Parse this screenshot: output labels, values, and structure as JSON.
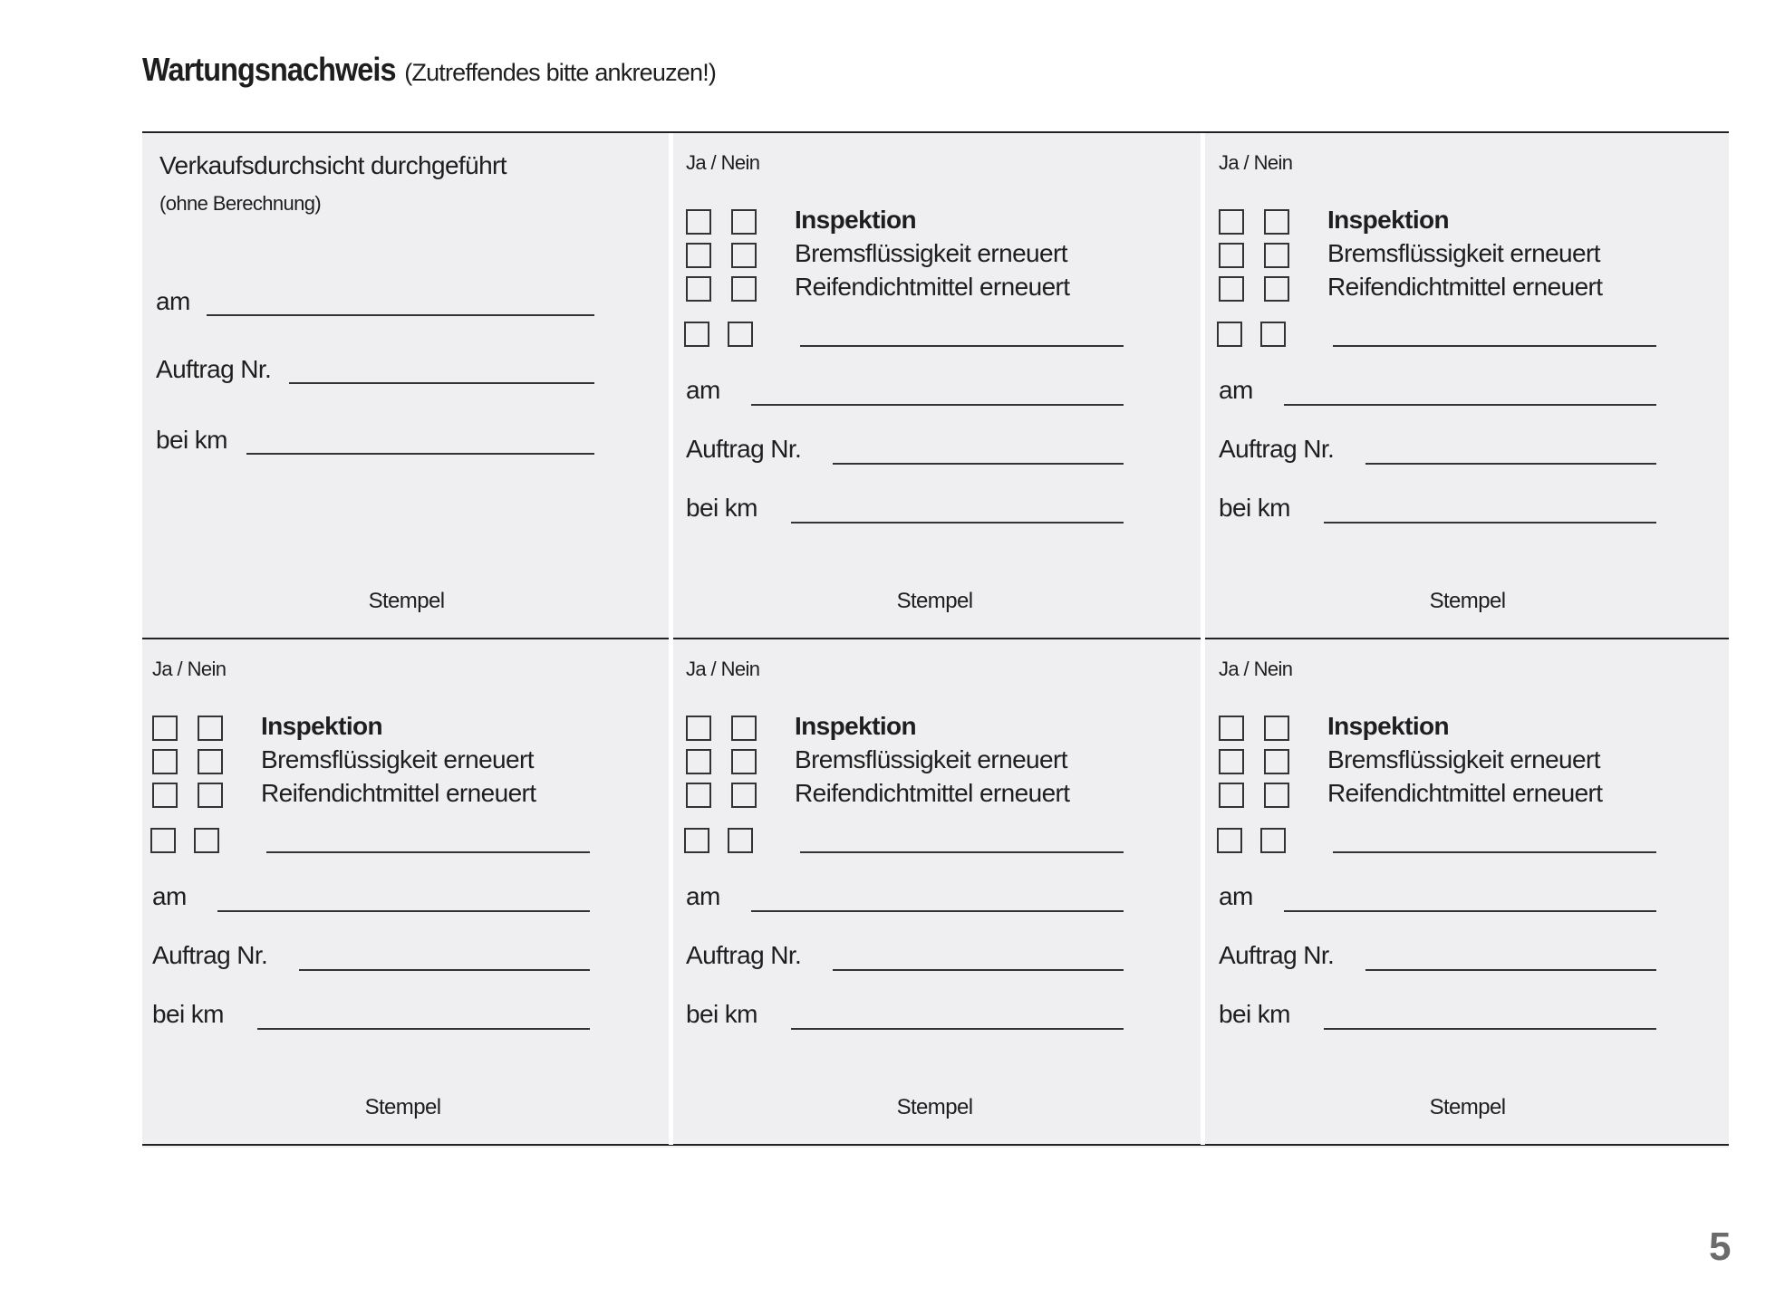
{
  "header": {
    "title": "Wartungsnachweis",
    "subtitle": "(Zutreffendes bitte ankreuzen!)"
  },
  "first_cell": {
    "title": "Verkaufsdurchsicht durchgeführt",
    "subtitle": "(ohne Berechnung)",
    "fields": [
      "am",
      "Auftrag Nr.",
      "bei km"
    ],
    "stamp": "Stempel"
  },
  "service_cell": {
    "yes_no": "Ja / Nein",
    "items": [
      {
        "label": "Inspektion",
        "bold": true
      },
      {
        "label": "Bremsflüssigkeit erneuert",
        "bold": false
      },
      {
        "label": "Reifendichtmittel erneuert",
        "bold": false
      }
    ],
    "fields": [
      "am",
      "Auftrag Nr.",
      "bei km"
    ],
    "stamp": "Stempel"
  },
  "service_cell_count": 5,
  "page_number": "5",
  "colors": {
    "cell_background": "#efeff1",
    "text": "#1e1e1e",
    "page_number": "#6b6b6b"
  }
}
